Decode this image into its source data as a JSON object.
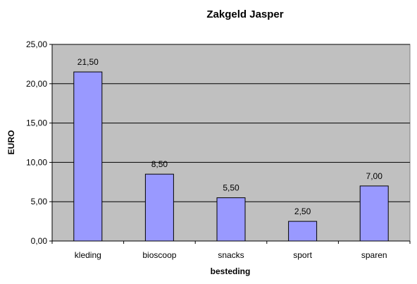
{
  "chart_data": {
    "type": "bar",
    "title": "Zakgeld Jasper",
    "xlabel": "besteding",
    "ylabel": "EURO",
    "categories": [
      "kleding",
      "bioscoop",
      "snacks",
      "sport",
      "sparen"
    ],
    "values": [
      21.5,
      8.5,
      5.5,
      2.5,
      7.0
    ],
    "value_labels": [
      "21,50",
      "8,50",
      "5,50",
      "2,50",
      "7,00"
    ],
    "y_ticks": [
      0,
      5,
      10,
      15,
      20,
      25
    ],
    "y_tick_labels": [
      "0,00",
      "5,00",
      "10,00",
      "15,00",
      "20,00",
      "25,00"
    ],
    "ylim": [
      0,
      25
    ],
    "grid": true,
    "legend": false,
    "colors": {
      "bar": "#9999ff",
      "bar_border": "#000000",
      "plot_background": "#c0c0c0",
      "gridline": "#000000"
    }
  }
}
